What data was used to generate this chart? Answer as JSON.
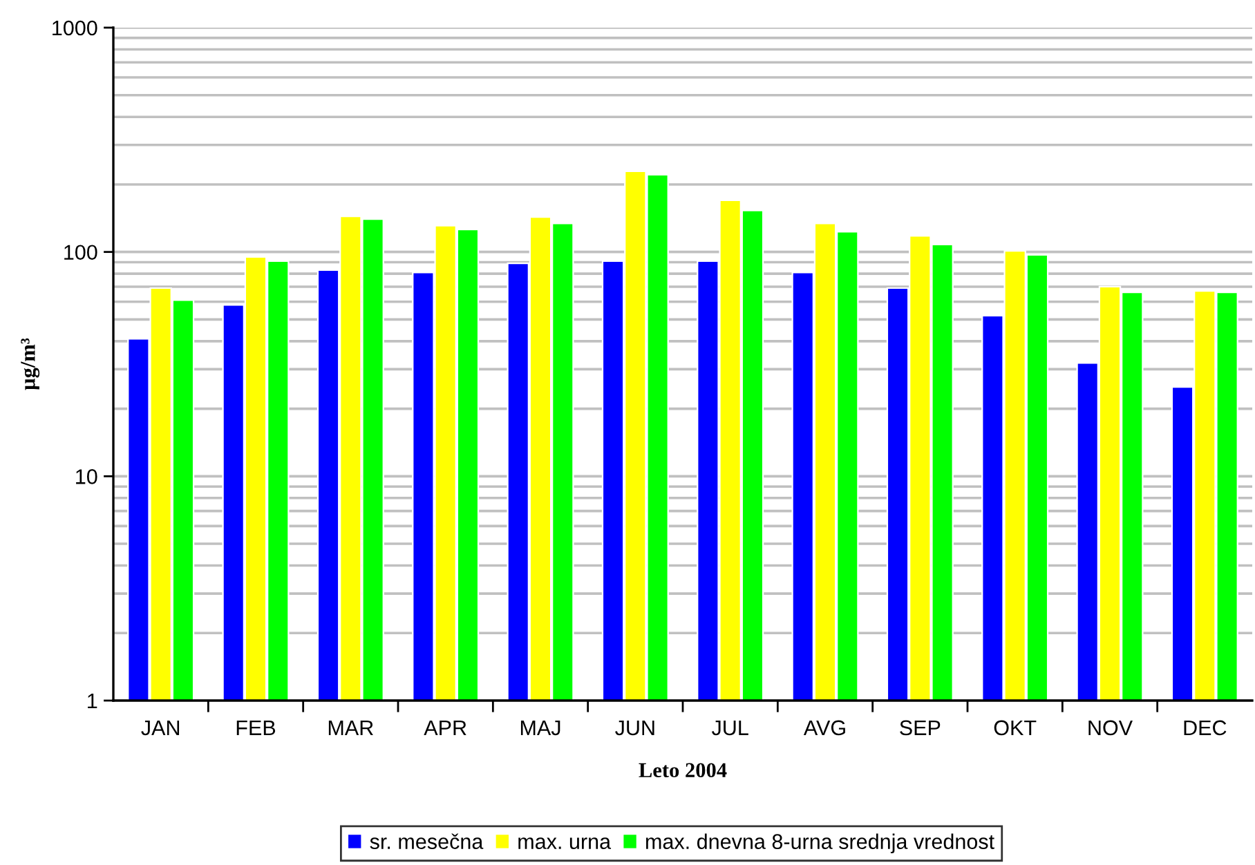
{
  "chart_data": {
    "type": "bar",
    "xlabel": "Leto 2004",
    "ylabel": "µg/m³",
    "categories": [
      "JAN",
      "FEB",
      "MAR",
      "APR",
      "MAJ",
      "JUN",
      "JUL",
      "AVG",
      "SEP",
      "OKT",
      "NOV",
      "DEC"
    ],
    "series": [
      {
        "name": "sr. mesečna",
        "color": "#0000ff",
        "values": [
          41,
          58,
          83,
          81,
          89,
          91,
          91,
          81,
          69,
          52,
          32,
          25
        ]
      },
      {
        "name": "max. urna",
        "color": "#ffff00",
        "values": [
          69,
          95,
          144,
          131,
          143,
          229,
          170,
          134,
          118,
          101,
          70,
          67
        ]
      },
      {
        "name": "max. dnevna 8-urna srednja vrednost",
        "color": "#00ff00",
        "values": [
          61,
          91,
          140,
          126,
          134,
          221,
          153,
          123,
          108,
          97,
          66,
          66
        ]
      }
    ],
    "log": true,
    "ylim": [
      1,
      1000
    ],
    "yticks": [
      1,
      {
        "value": 2,
        "label": null
      },
      {
        "value": 3,
        "label": null
      },
      {
        "value": 4,
        "label": null
      },
      {
        "value": 5,
        "label": null
      },
      {
        "value": 6,
        "label": null
      },
      {
        "value": 7,
        "label": null
      },
      {
        "value": 8,
        "label": null
      },
      {
        "value": 9,
        "label": null
      },
      10,
      {
        "value": 20,
        "label": null
      },
      {
        "value": 30,
        "label": null
      },
      {
        "value": 40,
        "label": null
      },
      {
        "value": 50,
        "label": null
      },
      {
        "value": 60,
        "label": null
      },
      {
        "value": 70,
        "label": null
      },
      {
        "value": 80,
        "label": null
      },
      {
        "value": 90,
        "label": null
      },
      100,
      {
        "value": 200,
        "label": null
      },
      {
        "value": 300,
        "label": null
      },
      {
        "value": 400,
        "label": null
      },
      {
        "value": 500,
        "label": null
      },
      {
        "value": 600,
        "label": null
      },
      {
        "value": 700,
        "label": null
      },
      {
        "value": 800,
        "label": null
      },
      {
        "value": 900,
        "label": null
      },
      1000
    ],
    "grid": "y",
    "legend": "bottom"
  }
}
